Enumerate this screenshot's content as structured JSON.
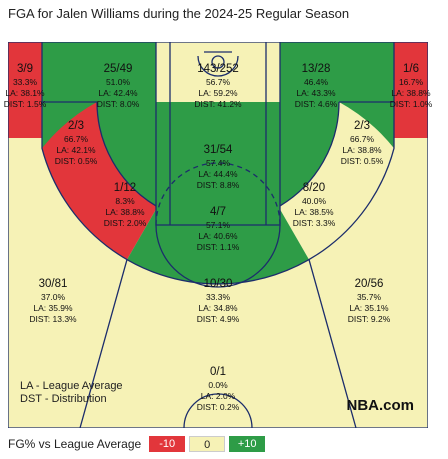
{
  "title": "FGA for Jalen Williams during the 2024-25 Regular Season",
  "colors": {
    "below": "#e2363b",
    "average": "#f6f2b6",
    "above": "#2e9c47",
    "court_lines": "#1c2d6b",
    "court_floor": "#f4ead8"
  },
  "chart_data": {
    "type": "heatmap",
    "title": "FGA for Jalen Williams during the 2024-25 Regular Season",
    "zones": [
      {
        "id": "left-corner-3",
        "fgm_fga": "3/9",
        "fg_pct": "33.3%",
        "league_avg": "LA: 38.1%",
        "distribution": "DIST: 1.5%",
        "rating": "below"
      },
      {
        "id": "left-wing-3",
        "fgm_fga": "25/49",
        "fg_pct": "51.0%",
        "league_avg": "LA: 42.4%",
        "distribution": "DIST: 8.0%",
        "rating": "above"
      },
      {
        "id": "restricted-area",
        "fgm_fga": "143/252",
        "fg_pct": "56.7%",
        "league_avg": "LA: 59.2%",
        "distribution": "DIST: 41.2%",
        "rating": "average"
      },
      {
        "id": "right-wing-3",
        "fgm_fga": "13/28",
        "fg_pct": "46.4%",
        "league_avg": "LA: 43.3%",
        "distribution": "DIST: 4.6%",
        "rating": "above"
      },
      {
        "id": "right-corner-3",
        "fgm_fga": "1/6",
        "fg_pct": "16.7%",
        "league_avg": "LA: 38.8%",
        "distribution": "DIST: 1.0%",
        "rating": "below"
      },
      {
        "id": "left-baseline-mid",
        "fgm_fga": "2/3",
        "fg_pct": "66.7%",
        "league_avg": "LA: 42.1%",
        "distribution": "DIST: 0.5%",
        "rating": "above"
      },
      {
        "id": "paint-non-ra",
        "fgm_fga": "31/54",
        "fg_pct": "57.4%",
        "league_avg": "LA: 44.4%",
        "distribution": "DIST: 8.8%",
        "rating": "above"
      },
      {
        "id": "right-baseline-mid",
        "fgm_fga": "2/3",
        "fg_pct": "66.7%",
        "league_avg": "LA: 38.8%",
        "distribution": "DIST: 0.5%",
        "rating": "above"
      },
      {
        "id": "left-elbow-mid",
        "fgm_fga": "1/12",
        "fg_pct": "8.3%",
        "league_avg": "LA: 38.8%",
        "distribution": "DIST: 2.0%",
        "rating": "below"
      },
      {
        "id": "top-key-mid",
        "fgm_fga": "4/7",
        "fg_pct": "57.1%",
        "league_avg": "LA: 40.6%",
        "distribution": "DIST: 1.1%",
        "rating": "above"
      },
      {
        "id": "right-elbow-mid",
        "fgm_fga": "8/20",
        "fg_pct": "40.0%",
        "league_avg": "LA: 38.5%",
        "distribution": "DIST: 3.3%",
        "rating": "average"
      },
      {
        "id": "left-above-break-3",
        "fgm_fga": "30/81",
        "fg_pct": "37.0%",
        "league_avg": "LA: 35.9%",
        "distribution": "DIST: 13.3%",
        "rating": "average"
      },
      {
        "id": "center-above-break-3",
        "fgm_fga": "10/30",
        "fg_pct": "33.3%",
        "league_avg": "LA: 34.8%",
        "distribution": "DIST: 4.9%",
        "rating": "average"
      },
      {
        "id": "right-above-break-3",
        "fgm_fga": "20/56",
        "fg_pct": "35.7%",
        "league_avg": "LA: 35.1%",
        "distribution": "DIST: 9.2%",
        "rating": "average"
      },
      {
        "id": "backcourt",
        "fgm_fga": "0/1",
        "fg_pct": "0.0%",
        "league_avg": "LA: 2.0%",
        "distribution": "DIST: 0.2%",
        "rating": "average"
      }
    ],
    "notes": [
      "LA - League Average",
      "DST - Distribution"
    ],
    "watermark": "NBA.com",
    "legend": {
      "title": "FG% vs League Average",
      "items": [
        {
          "label": "-10",
          "rating": "below"
        },
        {
          "label": "0",
          "rating": "average"
        },
        {
          "label": "+10",
          "rating": "above"
        }
      ]
    }
  }
}
